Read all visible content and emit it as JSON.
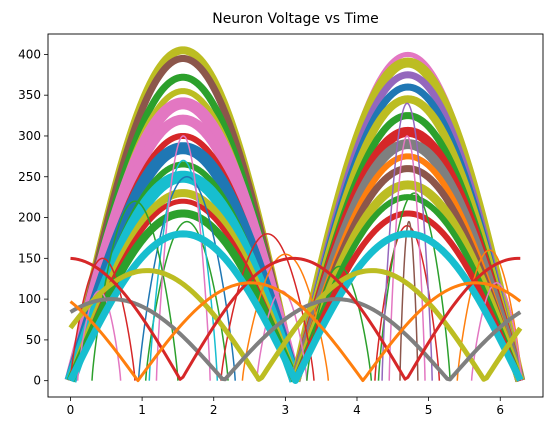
{
  "chart_data": {
    "type": "line",
    "title": "Neuron Voltage vs Time",
    "xlabel": "",
    "ylabel": "",
    "xlim": [
      -0.314,
      6.597
    ],
    "ylim": [
      -20,
      425
    ],
    "x_ticks": [
      0,
      1,
      2,
      3,
      4,
      5,
      6
    ],
    "y_ticks": [
      0,
      50,
      100,
      150,
      200,
      250,
      300,
      350,
      400
    ],
    "grid": false,
    "legend": "none",
    "series_note_colors": [
      "#1f77b4",
      "#ff7f0e",
      "#2ca02c",
      "#d62728",
      "#9467bd",
      "#8c564b",
      "#e377c2",
      "#7f7f7f",
      "#bcbd22",
      "#17becf"
    ],
    "series": [
      {
        "shape": "arch",
        "x_start": 0.0,
        "x_end": 3.14,
        "peak": 405,
        "color": "#bcbd22",
        "width": 8
      },
      {
        "shape": "arch",
        "x_start": 0.0,
        "x_end": 3.14,
        "peak": 395,
        "color": "#8c564b",
        "width": 7
      },
      {
        "shape": "arch",
        "x_start": 0.0,
        "x_end": 3.14,
        "peak": 372,
        "color": "#2ca02c",
        "width": 7
      },
      {
        "shape": "arch",
        "x_start": 0.0,
        "x_end": 3.14,
        "peak": 355,
        "color": "#bcbd22",
        "width": 6
      },
      {
        "shape": "arch",
        "x_start": 0.0,
        "x_end": 3.14,
        "peak": 340,
        "color": "#e377c2",
        "width": 12
      },
      {
        "shape": "arch",
        "x_start": 0.0,
        "x_end": 3.14,
        "peak": 320,
        "color": "#e377c2",
        "width": 10
      },
      {
        "shape": "arch",
        "x_start": 0.0,
        "x_end": 3.14,
        "peak": 300,
        "color": "#d62728",
        "width": 6
      },
      {
        "shape": "arch",
        "x_start": 0.0,
        "x_end": 3.14,
        "peak": 285,
        "color": "#1f77b4",
        "width": 12
      },
      {
        "shape": "arch",
        "x_start": 0.0,
        "x_end": 3.14,
        "peak": 265,
        "color": "#2ca02c",
        "width": 6
      },
      {
        "shape": "arch",
        "x_start": 0.0,
        "x_end": 3.14,
        "peak": 250,
        "color": "#17becf",
        "width": 12
      },
      {
        "shape": "arch",
        "x_start": 0.0,
        "x_end": 3.14,
        "peak": 230,
        "color": "#bcbd22",
        "width": 8
      },
      {
        "shape": "arch",
        "x_start": 0.0,
        "x_end": 3.14,
        "peak": 220,
        "color": "#d62728",
        "width": 5
      },
      {
        "shape": "arch",
        "x_start": 0.0,
        "x_end": 3.14,
        "peak": 205,
        "color": "#2ca02c",
        "width": 8
      },
      {
        "shape": "arch",
        "x_start": 3.14,
        "x_end": 6.28,
        "peak": 400,
        "color": "#e377c2",
        "width": 5
      },
      {
        "shape": "arch",
        "x_start": 3.14,
        "x_end": 6.28,
        "peak": 390,
        "color": "#bcbd22",
        "width": 10
      },
      {
        "shape": "arch",
        "x_start": 3.14,
        "x_end": 6.28,
        "peak": 375,
        "color": "#9467bd",
        "width": 7
      },
      {
        "shape": "arch",
        "x_start": 3.14,
        "x_end": 6.28,
        "peak": 360,
        "color": "#1f77b4",
        "width": 7
      },
      {
        "shape": "arch",
        "x_start": 3.14,
        "x_end": 6.28,
        "peak": 345,
        "color": "#bcbd22",
        "width": 8
      },
      {
        "shape": "arch",
        "x_start": 3.14,
        "x_end": 6.28,
        "peak": 325,
        "color": "#2ca02c",
        "width": 7
      },
      {
        "shape": "arch",
        "x_start": 3.14,
        "x_end": 6.28,
        "peak": 305,
        "color": "#d62728",
        "width": 10
      },
      {
        "shape": "arch",
        "x_start": 3.14,
        "x_end": 6.28,
        "peak": 290,
        "color": "#7f7f7f",
        "width": 10
      },
      {
        "shape": "arch",
        "x_start": 3.14,
        "x_end": 6.28,
        "peak": 275,
        "color": "#ff7f0e",
        "width": 6
      },
      {
        "shape": "arch",
        "x_start": 3.14,
        "x_end": 6.28,
        "peak": 260,
        "color": "#8c564b",
        "width": 7
      },
      {
        "shape": "arch",
        "x_start": 3.14,
        "x_end": 6.28,
        "peak": 240,
        "color": "#bcbd22",
        "width": 9
      },
      {
        "shape": "arch",
        "x_start": 3.14,
        "x_end": 6.28,
        "peak": 225,
        "color": "#2ca02c",
        "width": 6
      },
      {
        "shape": "arch",
        "x_start": 3.14,
        "x_end": 6.28,
        "peak": 205,
        "color": "#d62728",
        "width": 6
      },
      {
        "shape": "bump",
        "x_start": 1.05,
        "x_end": 2.2,
        "peak": 195,
        "color": "#2ca02c",
        "width": 1.5
      },
      {
        "shape": "bump",
        "x_start": 0.95,
        "x_end": 2.3,
        "peak": 250,
        "color": "#1f77b4",
        "width": 1.5
      },
      {
        "shape": "bump",
        "x_start": 1.1,
        "x_end": 2.05,
        "peak": 270,
        "color": "#17becf",
        "width": 1.5
      },
      {
        "shape": "bump",
        "x_start": 1.2,
        "x_end": 1.95,
        "peak": 300,
        "color": "#e377c2",
        "width": 1.5
      },
      {
        "shape": "bump",
        "x_start": 4.25,
        "x_end": 5.15,
        "peak": 190,
        "color": "#d62728",
        "width": 1.5
      },
      {
        "shape": "bump",
        "x_start": 4.3,
        "x_end": 5.3,
        "peak": 230,
        "color": "#2ca02c",
        "width": 1.5
      },
      {
        "shape": "bump",
        "x_start": 4.35,
        "x_end": 5.05,
        "peak": 340,
        "color": "#9467bd",
        "width": 1.5
      },
      {
        "shape": "bump",
        "x_start": 4.45,
        "x_end": 4.95,
        "peak": 300,
        "color": "#e377c2",
        "width": 1.5
      },
      {
        "shape": "bump",
        "x_start": 4.6,
        "x_end": 4.85,
        "peak": 195,
        "color": "#8c564b",
        "width": 1.5
      },
      {
        "shape": "bump",
        "x_start": 0.0,
        "x_end": 0.9,
        "peak": 150,
        "color": "#d62728",
        "width": 1.5
      },
      {
        "shape": "bump",
        "x_start": 0.3,
        "x_end": 1.5,
        "peak": 220,
        "color": "#2ca02c",
        "width": 1.5
      },
      {
        "shape": "bump",
        "x_start": 0.1,
        "x_end": 0.7,
        "peak": 110,
        "color": "#e377c2",
        "width": 1.5
      },
      {
        "shape": "bump",
        "x_start": 2.1,
        "x_end": 3.4,
        "peak": 180,
        "color": "#d62728",
        "width": 1.5
      },
      {
        "shape": "bump",
        "x_start": 2.4,
        "x_end": 3.6,
        "peak": 155,
        "color": "#ff7f0e",
        "width": 1.5
      },
      {
        "shape": "bump",
        "x_start": 2.6,
        "x_end": 3.3,
        "peak": 110,
        "color": "#e377c2",
        "width": 1.5
      },
      {
        "shape": "bump",
        "x_start": 3.3,
        "x_end": 4.2,
        "peak": 140,
        "color": "#2ca02c",
        "width": 1.5
      },
      {
        "shape": "bump",
        "x_start": 5.4,
        "x_end": 6.3,
        "peak": 160,
        "color": "#ff7f0e",
        "width": 1.5
      },
      {
        "shape": "bump",
        "x_start": 5.6,
        "x_end": 6.3,
        "peak": 120,
        "color": "#e377c2",
        "width": 1.5
      },
      {
        "shape": "absin",
        "x_start": 0.0,
        "x_end": 6.28,
        "peak": 180,
        "color": "#17becf",
        "width": 7,
        "phase": 0.0
      },
      {
        "shape": "absin",
        "x_start": 0.0,
        "x_end": 6.28,
        "peak": 135,
        "color": "#bcbd22",
        "width": 5,
        "phase": 0.5
      },
      {
        "shape": "absin",
        "x_start": 0.0,
        "x_end": 6.28,
        "peak": 100,
        "color": "#7f7f7f",
        "width": 4,
        "phase": 1.0
      },
      {
        "shape": "absin",
        "x_start": 0.0,
        "x_end": 6.28,
        "peak": 150,
        "color": "#d62728",
        "width": 3,
        "phase": 1.6
      },
      {
        "shape": "absin",
        "x_start": 0.0,
        "x_end": 6.28,
        "peak": 120,
        "color": "#ff7f0e",
        "width": 3,
        "phase": 2.2
      }
    ]
  }
}
